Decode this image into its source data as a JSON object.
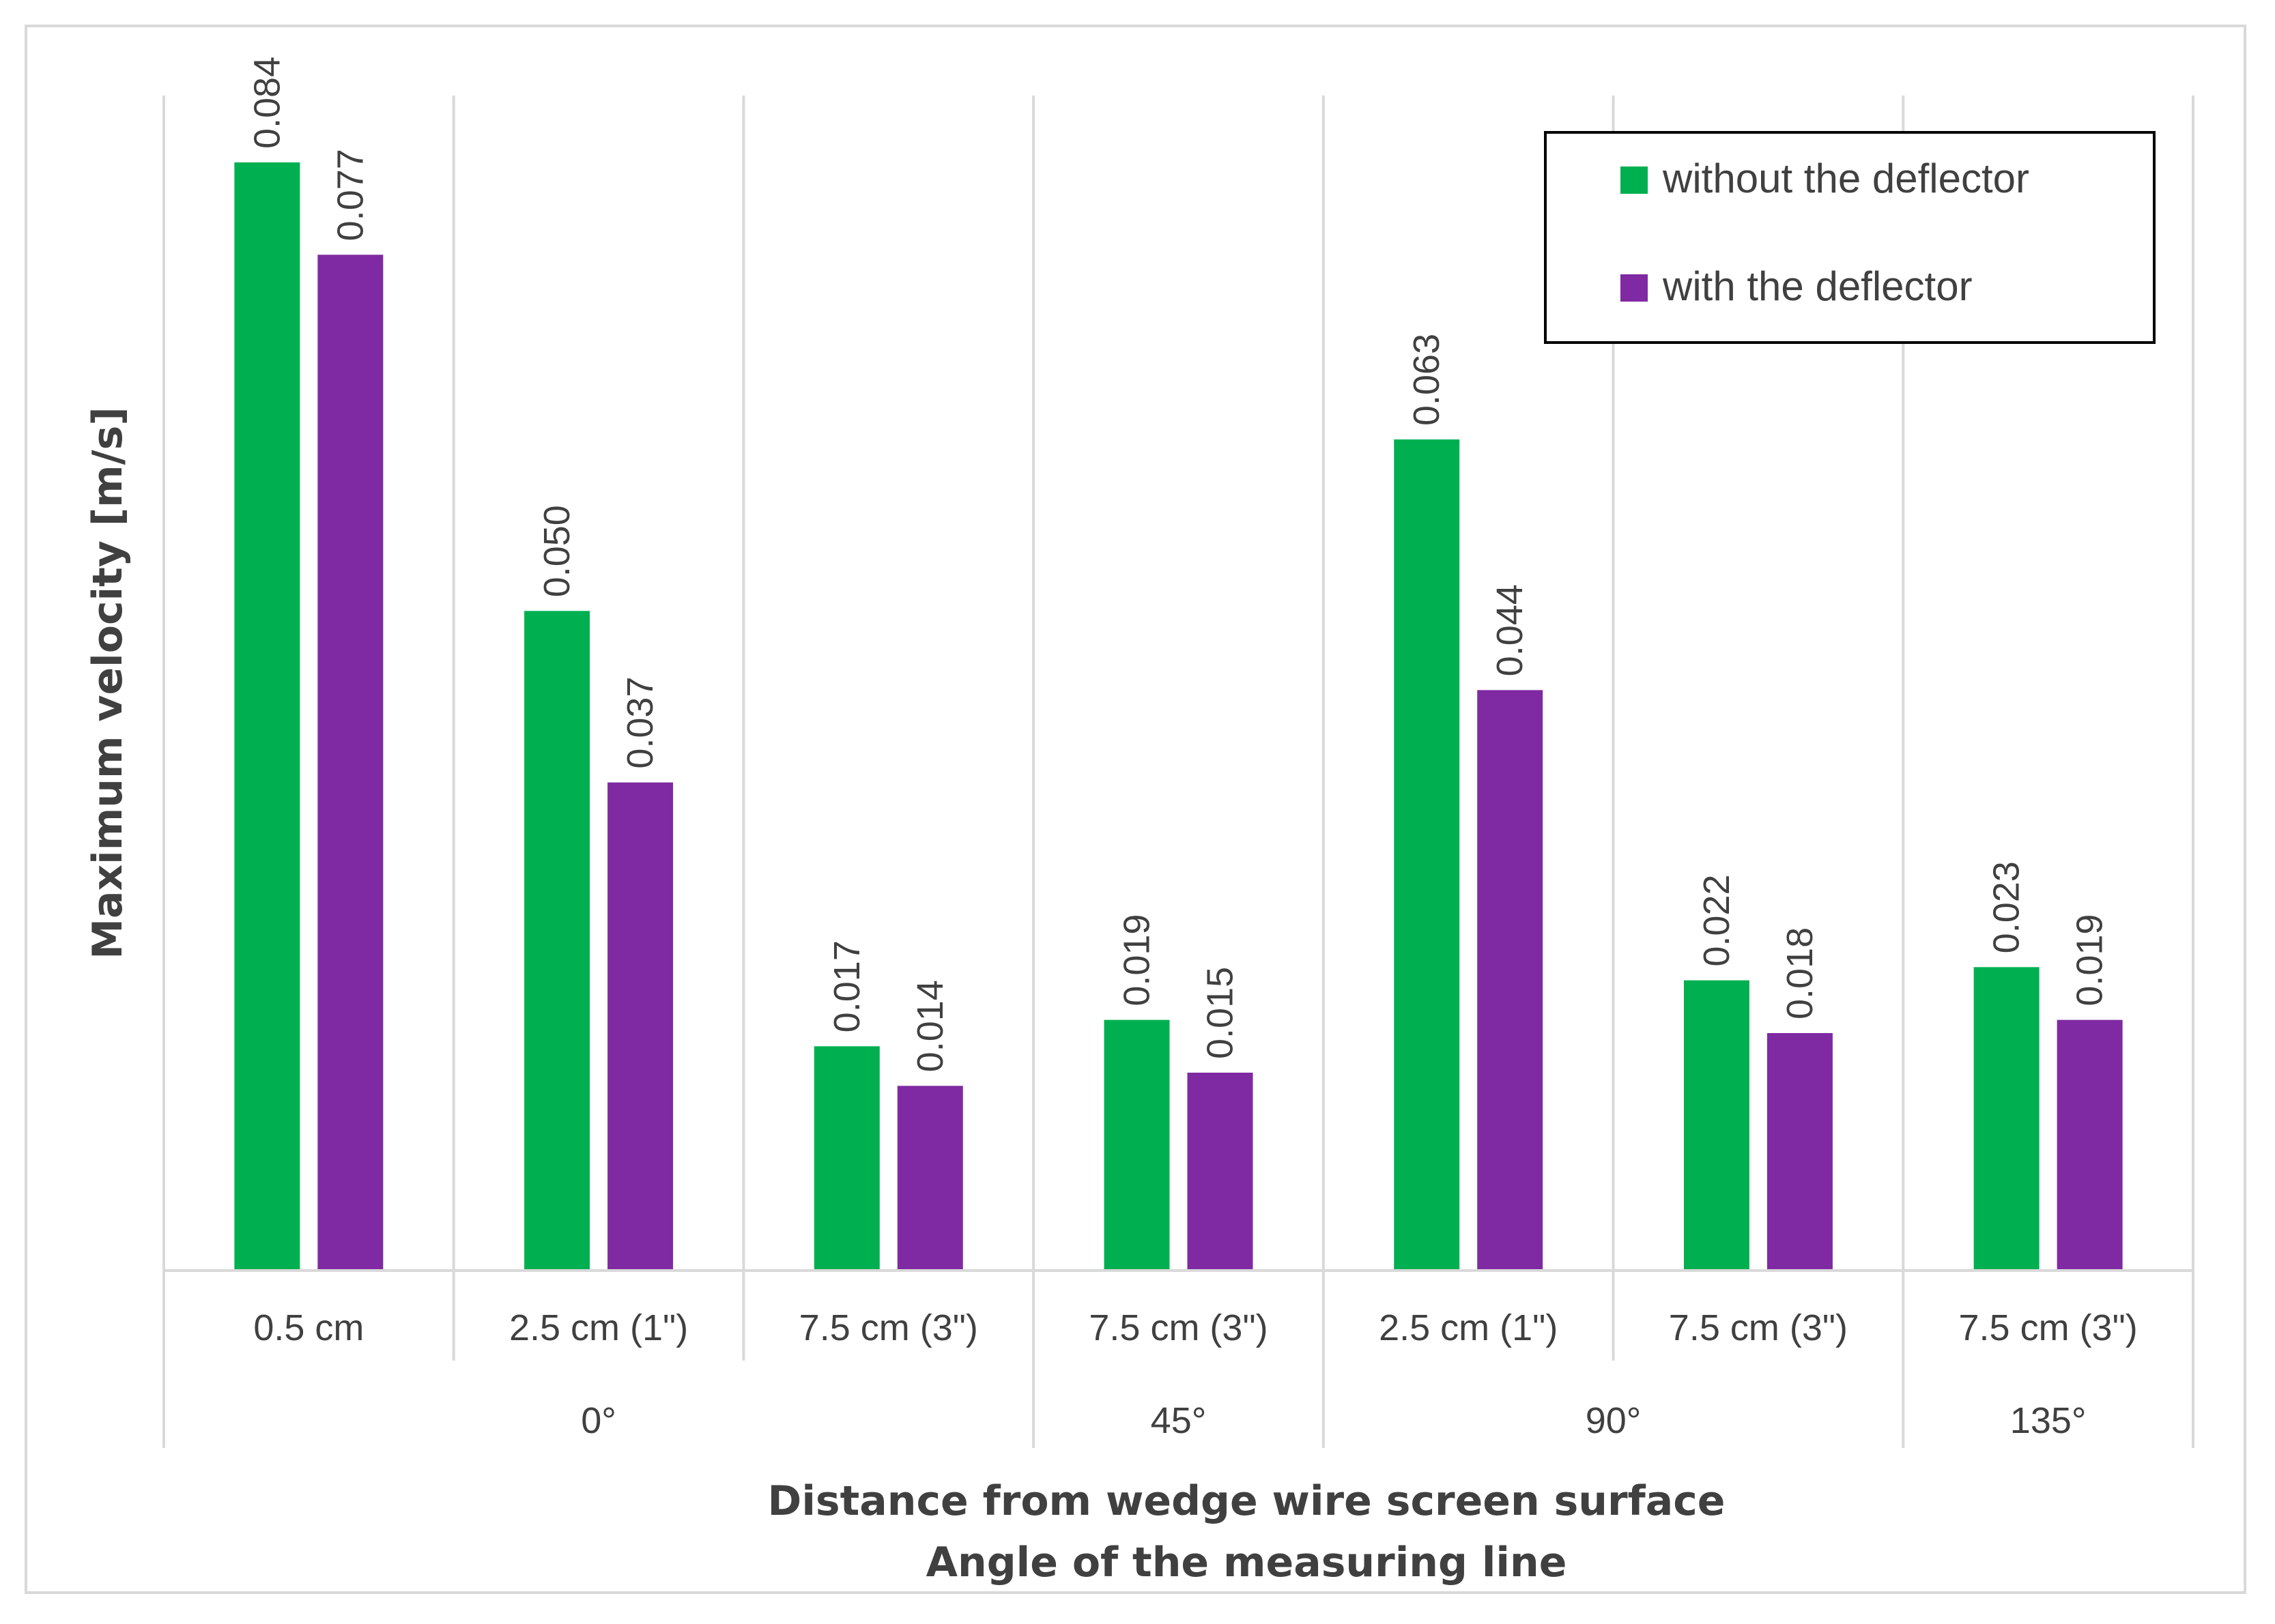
{
  "chart_data": {
    "type": "bar",
    "title": "",
    "ylabel": "Maximum velocity [m/s]",
    "xlabel_line1": "Distance from wedge wire screen surface",
    "xlabel_line2": "Angle of the measuring line",
    "ylim": [
      0,
      0.09
    ],
    "grid": false,
    "legend_position": "top-right",
    "categories": [
      "0.5 cm",
      "2.5 cm (1\")",
      "7.5 cm (3\")",
      "7.5 cm (3\")",
      "2.5 cm (1\")",
      "7.5 cm (3\")",
      "7.5 cm (3\")"
    ],
    "groups": [
      {
        "label": "0°",
        "start": 0,
        "count": 3
      },
      {
        "label": "45°",
        "start": 3,
        "count": 1
      },
      {
        "label": "90°",
        "start": 4,
        "count": 2
      },
      {
        "label": "135°",
        "start": 6,
        "count": 1
      }
    ],
    "series": [
      {
        "name": "without the deflector",
        "color": "#00b050",
        "values": [
          0.084,
          0.05,
          0.017,
          0.019,
          0.063,
          0.022,
          0.023
        ],
        "labels": [
          "0.084",
          "0.050",
          "0.017",
          "0.019",
          "0.063",
          "0.022",
          "0.023"
        ]
      },
      {
        "name": "with the deflector",
        "color": "#7f2aa2",
        "values": [
          0.077,
          0.037,
          0.014,
          0.015,
          0.044,
          0.018,
          0.019
        ],
        "labels": [
          "0.077",
          "0.037",
          "0.014",
          "0.015",
          "0.044",
          "0.018",
          "0.019"
        ]
      }
    ]
  }
}
